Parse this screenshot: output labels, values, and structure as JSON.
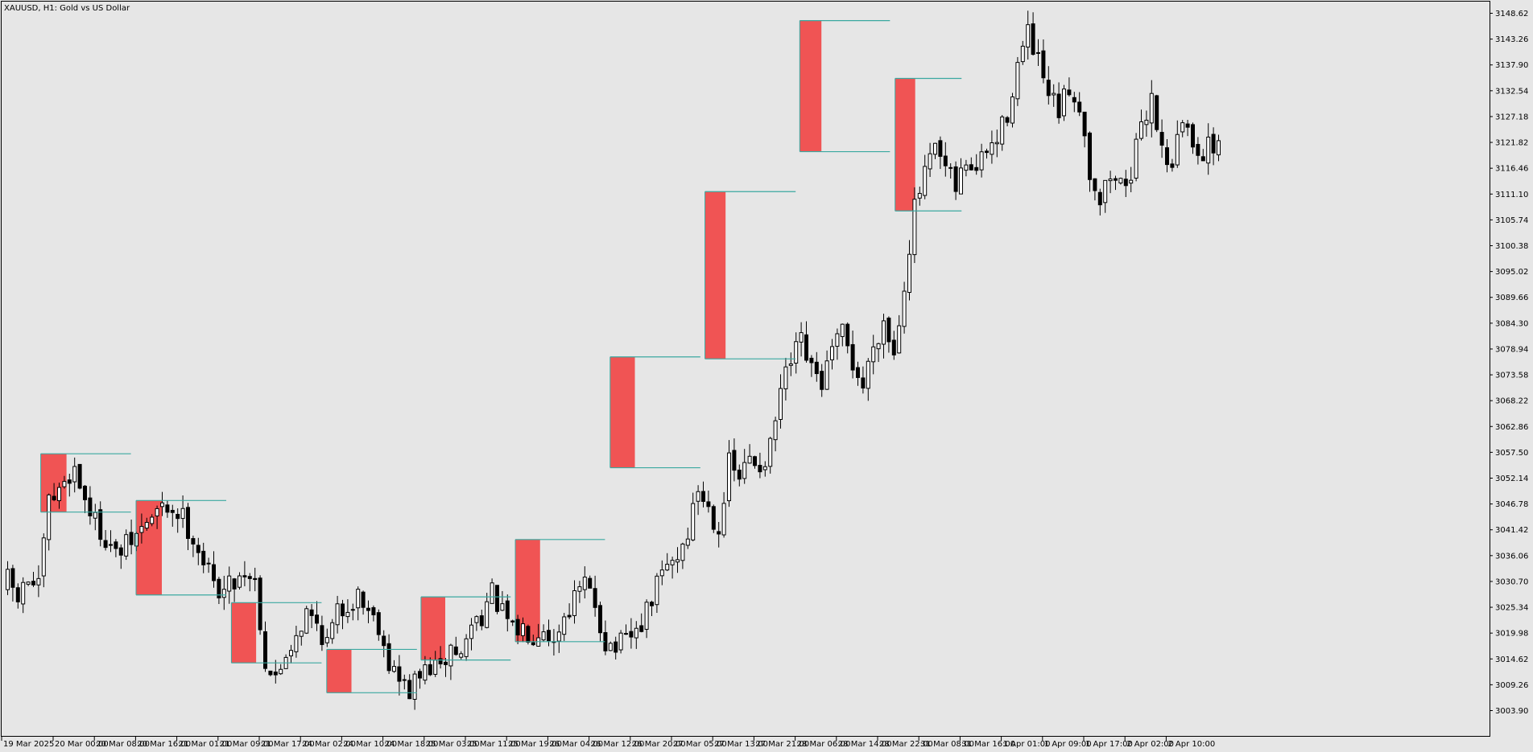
{
  "window": {
    "title": "XAUUSD, H1:  Gold vs US Dollar"
  },
  "colors": {
    "background": "#e6e6e6",
    "candle_up_fill": "#ffffff",
    "candle_down_fill": "#000000",
    "candle_outline": "#000000",
    "zone_fill": "#f05454",
    "zone_line": "#3aa8a0",
    "axis_line": "#000000"
  },
  "chart_data": {
    "type": "candlestick",
    "symbol": "XAUUSD",
    "timeframe": "H1",
    "title": "XAUUSD, H1:  Gold vs US Dollar",
    "ylim": [
      2999.5,
      3151.5
    ],
    "y_ticks": [
      "3148.62",
      "3143.26",
      "3137.90",
      "3132.54",
      "3127.18",
      "3121.82",
      "3116.46",
      "3111.10",
      "3105.74",
      "3100.38",
      "3095.02",
      "3089.66",
      "3084.30",
      "3078.94",
      "3073.58",
      "3068.22",
      "3062.86",
      "3057.50",
      "3052.14",
      "3046.78",
      "3041.42",
      "3036.06",
      "3030.70",
      "3025.34",
      "3019.98",
      "3014.62",
      "3009.26",
      "3003.90"
    ],
    "x_ticks": [
      {
        "label": "19 Mar 2025",
        "bar": 0
      },
      {
        "label": "20 Mar 00:00",
        "bar": 10
      },
      {
        "label": "20 Mar 08:00",
        "bar": 18
      },
      {
        "label": "20 Mar 16:00",
        "bar": 26
      },
      {
        "label": "21 Mar 01:00",
        "bar": 34
      },
      {
        "label": "21 Mar 09:00",
        "bar": 42
      },
      {
        "label": "21 Mar 17:00",
        "bar": 50
      },
      {
        "label": "24 Mar 02:00",
        "bar": 58
      },
      {
        "label": "24 Mar 10:00",
        "bar": 66
      },
      {
        "label": "24 Mar 18:00",
        "bar": 74
      },
      {
        "label": "25 Mar 03:00",
        "bar": 82
      },
      {
        "label": "25 Mar 11:00",
        "bar": 90
      },
      {
        "label": "25 Mar 19:00",
        "bar": 98
      },
      {
        "label": "26 Mar 04:00",
        "bar": 106
      },
      {
        "label": "26 Mar 12:00",
        "bar": 114
      },
      {
        "label": "26 Mar 20:00",
        "bar": 122
      },
      {
        "label": "27 Mar 05:00",
        "bar": 130
      },
      {
        "label": "27 Mar 13:00",
        "bar": 138
      },
      {
        "label": "27 Mar 21:00",
        "bar": 146
      },
      {
        "label": "28 Mar 06:00",
        "bar": 154
      },
      {
        "label": "28 Mar 14:00",
        "bar": 162
      },
      {
        "label": "28 Mar 22:00",
        "bar": 170
      },
      {
        "label": "31 Mar 08:00",
        "bar": 178
      },
      {
        "label": "31 Mar 16:00",
        "bar": 186
      },
      {
        "label": "1 Apr 01:00",
        "bar": 194
      },
      {
        "label": "1 Apr 09:00",
        "bar": 202
      },
      {
        "label": "1 Apr 17:00",
        "bar": 210
      },
      {
        "label": "2 Apr 02:00",
        "bar": 218
      },
      {
        "label": "2 Apr 10:00",
        "bar": 226
      }
    ],
    "close_path": [
      [
        0,
        3031
      ],
      [
        2,
        3027
      ],
      [
        4,
        3031
      ],
      [
        6,
        3029
      ],
      [
        8,
        3047
      ],
      [
        10,
        3049
      ],
      [
        11,
        3052
      ],
      [
        13,
        3054
      ],
      [
        15,
        3048
      ],
      [
        17,
        3043
      ],
      [
        19,
        3040
      ],
      [
        21,
        3036
      ],
      [
        23,
        3038
      ],
      [
        25,
        3040
      ],
      [
        27,
        3043
      ],
      [
        29,
        3045
      ],
      [
        31,
        3046
      ],
      [
        33,
        3045
      ],
      [
        34,
        3044
      ],
      [
        36,
        3040
      ],
      [
        38,
        3035
      ],
      [
        40,
        3030
      ],
      [
        42,
        3029
      ],
      [
        44,
        3031
      ],
      [
        46,
        3033
      ],
      [
        48,
        3031
      ],
      [
        50,
        3014
      ],
      [
        52,
        3010
      ],
      [
        54,
        3016
      ],
      [
        56,
        3020
      ],
      [
        58,
        3024
      ],
      [
        60,
        3022
      ],
      [
        62,
        3018
      ],
      [
        64,
        3024
      ],
      [
        66,
        3026
      ],
      [
        68,
        3028
      ],
      [
        70,
        3025
      ],
      [
        72,
        3022
      ],
      [
        74,
        3014
      ],
      [
        76,
        3010
      ],
      [
        78,
        3008
      ],
      [
        80,
        3011
      ],
      [
        82,
        3013
      ],
      [
        84,
        3012
      ],
      [
        86,
        3017
      ],
      [
        88,
        3015
      ],
      [
        90,
        3022
      ],
      [
        92,
        3024
      ],
      [
        94,
        3028
      ],
      [
        96,
        3024
      ],
      [
        98,
        3020
      ],
      [
        100,
        3021
      ],
      [
        102,
        3020
      ],
      [
        104,
        3022
      ],
      [
        106,
        3018
      ],
      [
        108,
        3024
      ],
      [
        110,
        3027
      ],
      [
        112,
        3030
      ],
      [
        114,
        3026
      ],
      [
        116,
        3018
      ],
      [
        118,
        3017
      ],
      [
        120,
        3018
      ],
      [
        122,
        3020
      ],
      [
        124,
        3024
      ],
      [
        126,
        3030
      ],
      [
        128,
        3034
      ],
      [
        130,
        3036
      ],
      [
        132,
        3041
      ],
      [
        134,
        3050
      ],
      [
        136,
        3046
      ],
      [
        138,
        3042
      ],
      [
        140,
        3055
      ],
      [
        142,
        3052
      ],
      [
        144,
        3056
      ],
      [
        146,
        3055
      ],
      [
        148,
        3058
      ],
      [
        150,
        3070
      ],
      [
        152,
        3076
      ],
      [
        154,
        3080
      ],
      [
        156,
        3074
      ],
      [
        158,
        3072
      ],
      [
        160,
        3078
      ],
      [
        162,
        3082
      ],
      [
        164,
        3076
      ],
      [
        166,
        3071
      ],
      [
        168,
        3080
      ],
      [
        170,
        3085
      ],
      [
        172,
        3078
      ],
      [
        174,
        3093
      ],
      [
        176,
        3108
      ],
      [
        178,
        3115
      ],
      [
        180,
        3120
      ],
      [
        182,
        3116
      ],
      [
        184,
        3112
      ],
      [
        186,
        3118
      ],
      [
        188,
        3116
      ],
      [
        190,
        3120
      ],
      [
        192,
        3122
      ],
      [
        194,
        3128
      ],
      [
        196,
        3138
      ],
      [
        198,
        3144
      ],
      [
        200,
        3138
      ],
      [
        202,
        3131
      ],
      [
        204,
        3128
      ],
      [
        206,
        3133
      ],
      [
        208,
        3130
      ],
      [
        210,
        3116
      ],
      [
        212,
        3110
      ],
      [
        214,
        3115
      ],
      [
        216,
        3113
      ],
      [
        218,
        3116
      ],
      [
        220,
        3124
      ],
      [
        222,
        3132
      ],
      [
        224,
        3120
      ],
      [
        226,
        3118
      ],
      [
        228,
        3126
      ],
      [
        230,
        3122
      ],
      [
        232,
        3120
      ],
      [
        234,
        3121
      ],
      [
        235,
        3123
      ]
    ],
    "zones": [
      {
        "bar_start": 6.5,
        "bar_end": 11.5,
        "top": 3057.2,
        "bottom": 3045.1,
        "line_end": 24
      },
      {
        "bar_start": 25,
        "bar_end": 30,
        "top": 3047.5,
        "bottom": 3027.9,
        "line_end": 42.5
      },
      {
        "bar_start": 43.5,
        "bar_end": 48.3,
        "top": 3026.3,
        "bottom": 3013.8,
        "line_end": 61
      },
      {
        "bar_start": 62,
        "bar_end": 66.8,
        "top": 3016.6,
        "bottom": 3007.6,
        "line_end": 79.5
      },
      {
        "bar_start": 80.3,
        "bar_end": 85,
        "top": 3027.5,
        "bottom": 3014.4,
        "line_end": 97.7
      },
      {
        "bar_start": 98.6,
        "bar_end": 103.4,
        "top": 3039.4,
        "bottom": 3018.2,
        "line_end": 116
      },
      {
        "bar_start": 117,
        "bar_end": 121.8,
        "top": 3077.3,
        "bottom": 3054.3,
        "line_end": 134.5
      },
      {
        "bar_start": 135.4,
        "bar_end": 139.4,
        "top": 3111.6,
        "bottom": 3076.9,
        "line_end": 153
      },
      {
        "bar_start": 153.8,
        "bar_end": 158,
        "top": 3147.1,
        "bottom": 3119.9,
        "line_end": 171.3
      },
      {
        "bar_start": 172.3,
        "bar_end": 176.2,
        "top": 3135.1,
        "bottom": 3107.6,
        "line_end": 185.2
      }
    ],
    "zone_count": 10
  }
}
